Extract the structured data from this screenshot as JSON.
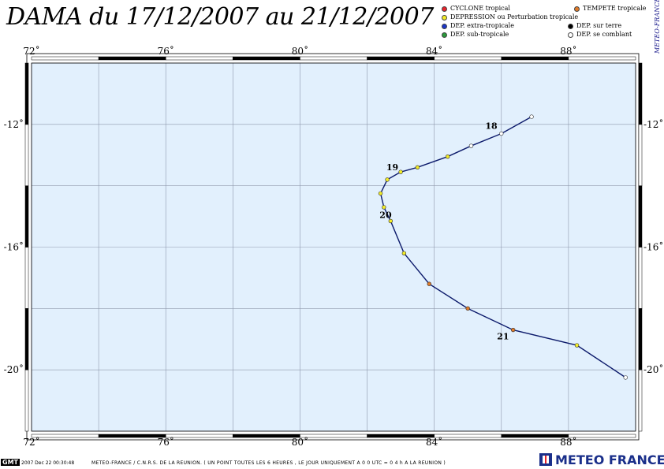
{
  "title": "DAMA du 17/12/2007 au 21/12/2007",
  "side_text": "METEO-FRANCE",
  "legend": [
    {
      "label": "CYCLONE tropical",
      "color": "#e8242b",
      "icon": "red-dot"
    },
    {
      "label": "TEMPETE tropicale",
      "color": "#e07b2a",
      "icon": "orange-dot"
    },
    {
      "label": "DEPRESSION ou Perturbation tropicale",
      "color": "#f3ec27",
      "icon": "yellow-dot"
    },
    {
      "label": "DEP. extra-tropicale",
      "color": "#1b36c9",
      "icon": "blue-dot"
    },
    {
      "label": "DEP. sur terre",
      "color": "#000000",
      "icon": "black-dot"
    },
    {
      "label": "DEP. sub-tropicale",
      "color": "#2a9a3a",
      "icon": "green-dot"
    },
    {
      "label": "DEP. se comblant",
      "color": "#ffffff",
      "icon": "white-dot"
    }
  ],
  "map": {
    "lon_range": [
      72,
      90
    ],
    "lat_range": [
      -22,
      -10
    ],
    "lon_ticks": [
      72,
      76,
      80,
      84,
      88
    ],
    "lat_ticks": [
      -12,
      -16,
      -20
    ],
    "lon_tick_labels": [
      "72˚",
      "76˚",
      "80˚",
      "84˚",
      "88˚"
    ],
    "lat_tick_labels": [
      "-12˚",
      "-16˚",
      "-20˚"
    ],
    "grid_lon_step": 2,
    "grid_lat_step": 2,
    "ocean_color": "#e2f0fd",
    "track_color": "#0c1a6b"
  },
  "track": [
    {
      "lon": 86.9,
      "lat": -11.75,
      "status": "dissipating"
    },
    {
      "lon": 86.0,
      "lat": -12.3,
      "status": "dissipating"
    },
    {
      "lon": 85.1,
      "lat": -12.7,
      "status": "dissipating"
    },
    {
      "lon": 84.4,
      "lat": -13.05,
      "status": "depression"
    },
    {
      "lon": 83.5,
      "lat": -13.4,
      "status": "depression"
    },
    {
      "lon": 83.0,
      "lat": -13.55,
      "status": "depression"
    },
    {
      "lon": 82.6,
      "lat": -13.8,
      "status": "depression"
    },
    {
      "lon": 82.4,
      "lat": -14.25,
      "status": "depression"
    },
    {
      "lon": 82.5,
      "lat": -14.7,
      "status": "depression"
    },
    {
      "lon": 82.7,
      "lat": -15.15,
      "status": "depression"
    },
    {
      "lon": 83.1,
      "lat": -16.2,
      "status": "depression"
    },
    {
      "lon": 83.85,
      "lat": -17.2,
      "status": "storm"
    },
    {
      "lon": 85.0,
      "lat": -18.0,
      "status": "storm"
    },
    {
      "lon": 86.35,
      "lat": -18.7,
      "status": "storm"
    },
    {
      "lon": 88.25,
      "lat": -19.2,
      "status": "depression"
    },
    {
      "lon": 89.7,
      "lat": -20.25,
      "status": "dissipating"
    }
  ],
  "status_colors": {
    "cyclone": "#e8242b",
    "storm": "#e07b2a",
    "depression": "#f3ec27",
    "dissipating": "#ffffff"
  },
  "day_labels": [
    {
      "text": "18",
      "lon": 85.7,
      "lat": -12.15
    },
    {
      "text": "19",
      "lon": 82.75,
      "lat": -13.5
    },
    {
      "text": "20",
      "lon": 82.55,
      "lat": -15.05
    },
    {
      "text": "21",
      "lon": 86.05,
      "lat": -19.0
    }
  ],
  "footer": {
    "gmt": "GMT",
    "stamp": "2007 Dec 22 00:30:48",
    "credit": "METEO-FRANCE / C.N.R.S. DE LA REUNION.   ( UN POINT TOUTES LES 6 HEURES , LE JOUR UNIQUEMENT A 0 0 UTC = 0 4 h A LA REUNION )",
    "brand": "METEO FRANCE"
  }
}
